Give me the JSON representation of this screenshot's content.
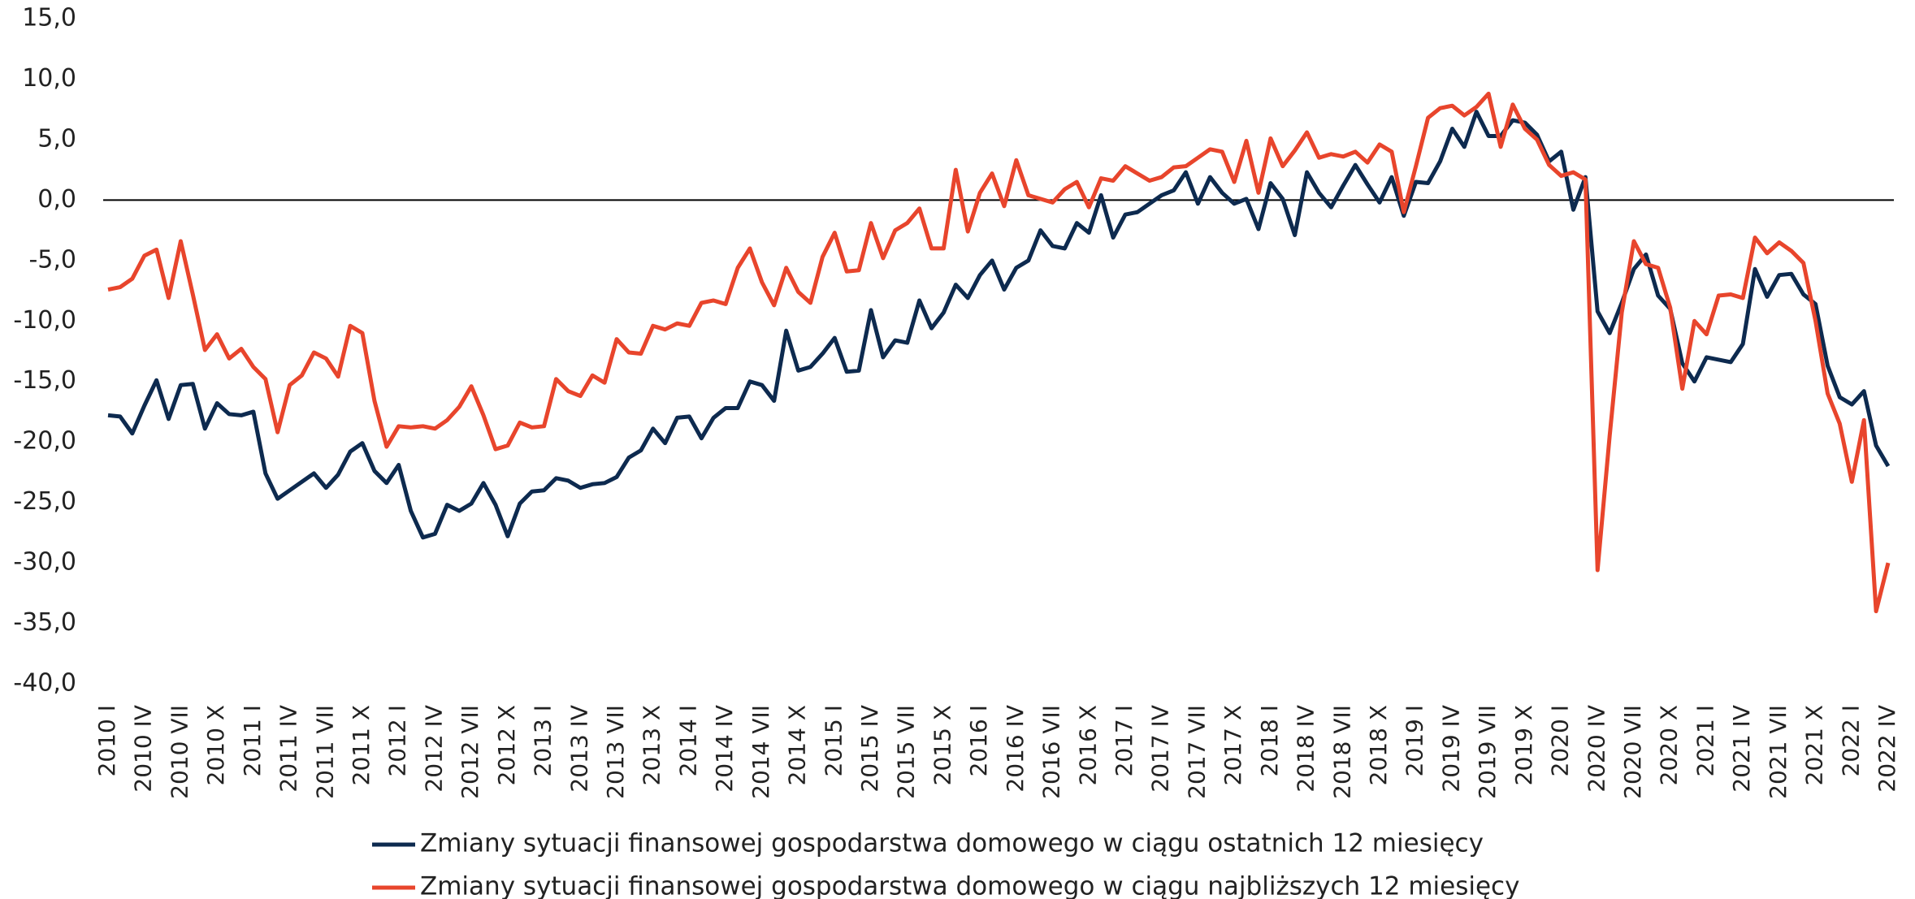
{
  "chart_data": {
    "type": "line",
    "categories": [
      "2010 I",
      null,
      null,
      "2010 IV",
      null,
      null,
      "2010 VII",
      null,
      null,
      "2010 X",
      null,
      null,
      "2011 I",
      null,
      null,
      "2011 IV",
      null,
      null,
      "2011 VII",
      null,
      null,
      "2011 X",
      null,
      null,
      "2012 I",
      null,
      null,
      "2012 IV",
      null,
      null,
      "2012 VII",
      null,
      null,
      "2012 X",
      null,
      null,
      "2013 I",
      null,
      null,
      "2013 IV",
      null,
      null,
      "2013 VII",
      null,
      null,
      "2013 X",
      null,
      null,
      "2014 I",
      null,
      null,
      "2014 IV",
      null,
      null,
      "2014 VII",
      null,
      null,
      "2014 X",
      null,
      null,
      "2015 I",
      null,
      null,
      "2015 IV",
      null,
      null,
      "2015 VII",
      null,
      null,
      "2015 X",
      null,
      null,
      "2016 I",
      null,
      null,
      "2016 IV",
      null,
      null,
      "2016 VII",
      null,
      null,
      "2016 X",
      null,
      null,
      "2017 I",
      null,
      null,
      "2017 IV",
      null,
      null,
      "2017 VII",
      null,
      null,
      "2017 X",
      null,
      null,
      "2018 I",
      null,
      null,
      "2018 IV",
      null,
      null,
      "2018 VII",
      null,
      null,
      "2018 X",
      null,
      null,
      "2019 I",
      null,
      null,
      "2019 IV",
      null,
      null,
      "2019 VII",
      null,
      null,
      "2019 X",
      null,
      null,
      "2020 I",
      null,
      null,
      "2020 IV",
      null,
      null,
      "2020 VII",
      null,
      null,
      "2020 X",
      null,
      null,
      "2021 I",
      null,
      null,
      "2021 IV",
      null,
      null,
      "2021 VII",
      null,
      null,
      "2021 X",
      null,
      null,
      "2022 I",
      null,
      null,
      "2022 IV"
    ],
    "series": [
      {
        "name": "Zmiany sytuacji finansowej gospodarstwa domowego w ciągu ostatnich 12 miesięcy",
        "color": "#0d2a4f",
        "values": [
          -17.8,
          -17.9,
          -19.3,
          -17,
          -14.9,
          -18.1,
          -15.3,
          -15.2,
          -18.9,
          -16.8,
          -17.7,
          -17.8,
          -17.5,
          -22.6,
          -24.7,
          -24,
          -23.3,
          -22.6,
          -23.8,
          -22.7,
          -20.8,
          -20.1,
          -22.4,
          -23.4,
          -21.9,
          -25.7,
          -27.9,
          -27.6,
          -25.2,
          -25.7,
          -25.1,
          -23.4,
          -25.2,
          -27.8,
          -25.1,
          -24.1,
          -24,
          -23,
          -23.2,
          -23.8,
          -23.5,
          -23.4,
          -22.9,
          -21.3,
          -20.7,
          -18.9,
          -20.1,
          -18,
          -17.9,
          -19.7,
          -18,
          -17.2,
          -17.2,
          -15,
          -15.3,
          -16.6,
          -10.8,
          -14.1,
          -13.8,
          -12.7,
          -11.4,
          -14.2,
          -14.1,
          -9.1,
          -13,
          -11.6,
          -11.8,
          -8.3,
          -10.6,
          -9.3,
          -7,
          -8.1,
          -6.2,
          -5,
          -7.4,
          -5.6,
          -5,
          -2.5,
          -3.8,
          -4,
          -1.9,
          -2.7,
          0.4,
          -3.1,
          -1.2,
          -1,
          -0.3,
          0.4,
          0.8,
          2.3,
          -0.3,
          1.9,
          0.6,
          -0.3,
          0.1,
          -2.4,
          1.4,
          0.1,
          -2.9,
          2.3,
          0.6,
          -0.6,
          1.2,
          2.9,
          1.3,
          -0.2,
          1.9,
          -1.3,
          1.5,
          1.4,
          3.2,
          5.9,
          4.4,
          7.3,
          5.3,
          5.3,
          6.6,
          6.4,
          5.4,
          3.2,
          4,
          -0.8,
          1.9,
          -9.2,
          -11,
          -8.5,
          -5.7,
          -4.5,
          -7.9,
          -9,
          -13.5,
          -15,
          -13,
          -13.2,
          -13.4,
          -11.9,
          -5.7,
          -8,
          -6.2,
          -6.1,
          -7.8,
          -8.6,
          -13.7,
          -16.3,
          -16.9,
          -15.8,
          -20.3,
          -22
        ]
      },
      {
        "name": "Zmiany sytuacji finansowej gospodarstwa domowego w ciągu najbliższych 12 miesięcy",
        "color": "#e8452c",
        "values": [
          -7.4,
          -7.2,
          -6.5,
          -4.6,
          -4.1,
          -8.1,
          -3.4,
          -7.8,
          -12.4,
          -11.1,
          -13.1,
          -12.3,
          -13.8,
          -14.8,
          -19.2,
          -15.3,
          -14.5,
          -12.6,
          -13.1,
          -14.6,
          -10.4,
          -11,
          -16.6,
          -20.4,
          -18.7,
          -18.8,
          -18.7,
          -18.9,
          -18.2,
          -17.1,
          -15.4,
          -17.8,
          -20.6,
          -20.3,
          -18.4,
          -18.8,
          -18.7,
          -14.8,
          -15.8,
          -16.2,
          -14.5,
          -15.1,
          -11.5,
          -12.6,
          -12.7,
          -10.4,
          -10.7,
          -10.2,
          -10.4,
          -8.5,
          -8.3,
          -8.6,
          -5.6,
          -4,
          -6.8,
          -8.7,
          -5.6,
          -7.6,
          -8.5,
          -4.7,
          -2.7,
          -5.9,
          -5.8,
          -1.9,
          -4.8,
          -2.5,
          -1.9,
          -0.7,
          -4,
          -4,
          2.5,
          -2.6,
          0.6,
          2.2,
          -0.5,
          3.3,
          0.4,
          0.1,
          -0.2,
          0.9,
          1.5,
          -0.6,
          1.8,
          1.6,
          2.8,
          2.2,
          1.6,
          1.9,
          2.7,
          2.8,
          3.5,
          4.2,
          4,
          1.5,
          4.9,
          0.6,
          5.1,
          2.8,
          4.1,
          5.6,
          3.5,
          3.8,
          3.6,
          4,
          3.1,
          4.6,
          4,
          -1,
          2.8,
          6.8,
          7.6,
          7.8,
          7,
          7.7,
          8.8,
          4.4,
          7.9,
          5.9,
          5,
          2.9,
          2,
          2.3,
          1.7,
          -30.6,
          -19.5,
          -9.3,
          -3.4,
          -5.3,
          -5.6,
          -8.9,
          -15.6,
          -10,
          -11.1,
          -7.9,
          -7.8,
          -8.1,
          -3.1,
          -4.4,
          -3.5,
          -4.2,
          -5.2,
          -10,
          -16,
          -18.5,
          -23.3,
          -18.2,
          -34,
          -30
        ]
      }
    ],
    "ylim": [
      -40,
      15
    ],
    "yticks": [
      {
        "value": -40,
        "label": "-40,0"
      },
      {
        "value": -35,
        "label": "-35,0"
      },
      {
        "value": -30,
        "label": "-30,0"
      },
      {
        "value": -25,
        "label": "-25,0"
      },
      {
        "value": -20,
        "label": "-20,0"
      },
      {
        "value": -15,
        "label": "-15,0"
      },
      {
        "value": -10,
        "label": "-10,0"
      },
      {
        "value": -5,
        "label": "-5,0"
      },
      {
        "value": 0,
        "label": "0,0"
      },
      {
        "value": 5,
        "label": "5,0"
      },
      {
        "value": 10,
        "label": "10,0"
      },
      {
        "value": 15,
        "label": "15,0"
      }
    ],
    "legend": "bottom"
  }
}
